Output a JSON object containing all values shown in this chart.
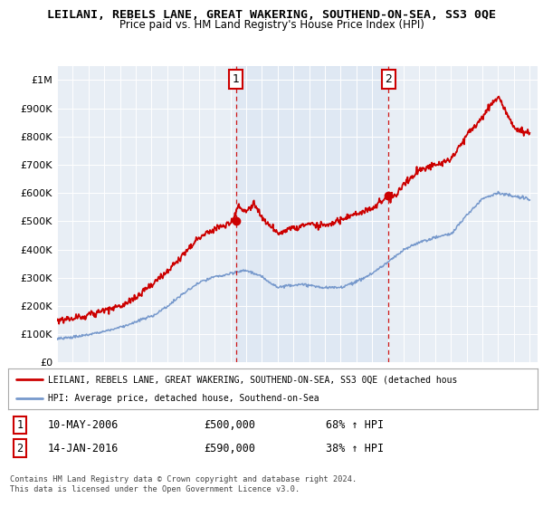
{
  "title": "LEILANI, REBELS LANE, GREAT WAKERING, SOUTHEND-ON-SEA, SS3 0QE",
  "subtitle": "Price paid vs. HM Land Registry's House Price Index (HPI)",
  "bg_color": "#ffffff",
  "plot_bg": "#e8eef5",
  "shade_color": "#d0dff0",
  "red_color": "#cc0000",
  "blue_color": "#7799cc",
  "vline_color": "#cc0000",
  "ylim": [
    0,
    1050000
  ],
  "yticks": [
    0,
    100000,
    200000,
    300000,
    400000,
    500000,
    600000,
    700000,
    800000,
    900000,
    1000000
  ],
  "ytick_labels": [
    "£0",
    "£100K",
    "£200K",
    "£300K",
    "£400K",
    "£500K",
    "£600K",
    "£700K",
    "£800K",
    "£900K",
    "£1M"
  ],
  "sale1_year": 2006.36,
  "sale1_price": 500000,
  "sale2_year": 2016.04,
  "sale2_price": 590000,
  "legend_line1": "LEILANI, REBELS LANE, GREAT WAKERING, SOUTHEND-ON-SEA, SS3 0QE (detached hous",
  "legend_line2": "HPI: Average price, detached house, Southend-on-Sea",
  "note1_label": "1",
  "note1_date": "10-MAY-2006",
  "note1_price": "£500,000",
  "note1_hpi": "68% ↑ HPI",
  "note2_label": "2",
  "note2_date": "14-JAN-2016",
  "note2_price": "£590,000",
  "note2_hpi": "38% ↑ HPI",
  "footer": "Contains HM Land Registry data © Crown copyright and database right 2024.\nThis data is licensed under the Open Government Licence v3.0."
}
